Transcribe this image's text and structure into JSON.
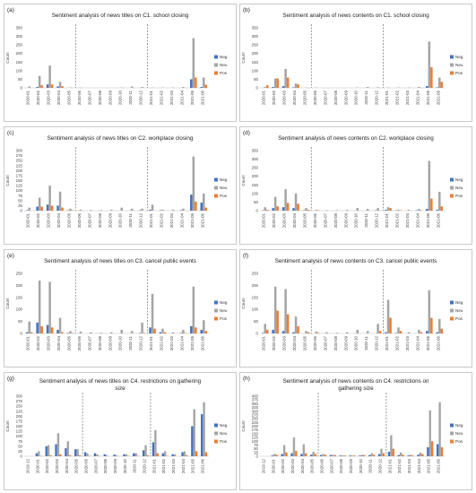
{
  "colors": {
    "Neg": "#4472c4",
    "Neu": "#a5a5a5",
    "Pos": "#ed7d31"
  },
  "legend": [
    "Neg",
    "Neu",
    "Pos"
  ],
  "chart_data": [
    {
      "type": "bar",
      "panel_label": "(a)",
      "title": "Sentiment analysis of news titles on C1. school closing",
      "ylabel": "Count",
      "ylim": [
        0,
        350
      ],
      "yticks": [
        0,
        50,
        100,
        150,
        200,
        250,
        300,
        350
      ],
      "dividers_after": [
        "2020-05",
        "2020-12"
      ],
      "categories": [
        "2020-01",
        "2020-02",
        "2020-03",
        "2020-04",
        "2020-05",
        "2020-06",
        "2020-07",
        "2020-08",
        "2020-09",
        "2020-10",
        "2020-11",
        "2020-12",
        "2021-01",
        "2021-02",
        "2021-03",
        "2021-04",
        "2021-05",
        "2021-06"
      ],
      "series": [
        {
          "name": "Neg",
          "values": [
            0,
            5,
            20,
            8,
            0,
            0,
            0,
            0,
            0,
            0,
            0,
            0,
            0,
            0,
            0,
            0,
            50,
            5
          ]
        },
        {
          "name": "Neu",
          "values": [
            8,
            70,
            130,
            35,
            2,
            2,
            0,
            0,
            0,
            2,
            8,
            5,
            2,
            2,
            2,
            5,
            290,
            60
          ]
        },
        {
          "name": "Pos",
          "values": [
            0,
            15,
            20,
            10,
            0,
            0,
            0,
            0,
            0,
            0,
            0,
            0,
            0,
            0,
            0,
            0,
            60,
            18
          ]
        }
      ]
    },
    {
      "type": "bar",
      "panel_label": "(b)",
      "title": "Sentiment analysis of news contents on C1. school closing",
      "ylabel": "Count",
      "ylim": [
        0,
        350
      ],
      "yticks": [
        0,
        50,
        100,
        150,
        200,
        250,
        300,
        350
      ],
      "dividers_after": [
        "2020-05",
        "2020-12"
      ],
      "categories": [
        "2020-01",
        "2020-02",
        "2020-03",
        "2020-04",
        "2020-05",
        "2020-06",
        "2020-07",
        "2020-08",
        "2020-09",
        "2020-10",
        "2020-11",
        "2020-12",
        "2021-01",
        "2021-02",
        "2021-03",
        "2021-04",
        "2021-05",
        "2021-06"
      ],
      "series": [
        {
          "name": "Neg",
          "values": [
            0,
            5,
            10,
            3,
            0,
            0,
            0,
            0,
            0,
            0,
            0,
            0,
            0,
            0,
            0,
            0,
            10,
            3
          ]
        },
        {
          "name": "Neu",
          "values": [
            5,
            55,
            110,
            25,
            2,
            2,
            0,
            0,
            0,
            2,
            5,
            3,
            2,
            2,
            2,
            5,
            270,
            60
          ]
        },
        {
          "name": "Pos",
          "values": [
            15,
            55,
            60,
            20,
            0,
            0,
            0,
            0,
            0,
            0,
            0,
            0,
            0,
            0,
            0,
            0,
            120,
            35
          ]
        }
      ]
    },
    {
      "type": "bar",
      "panel_label": "(c)",
      "title": "Sentiment analysis of news titles on C2. workplace closing",
      "ylabel": "Count",
      "ylim": [
        0,
        300
      ],
      "yticks": [
        0,
        25,
        50,
        75,
        100,
        125,
        150,
        175,
        200,
        225,
        250,
        275,
        300
      ],
      "dividers_after": [
        "2020-05",
        "2020-12"
      ],
      "categories": [
        "2020-01",
        "2020-02",
        "2020-03",
        "2020-04",
        "2020-05",
        "2020-06",
        "2020-07",
        "2020-08",
        "2020-09",
        "2020-10",
        "2020-11",
        "2020-12",
        "2021-01",
        "2021-02",
        "2021-03",
        "2021-04",
        "2021-05",
        "2021-06"
      ],
      "series": [
        {
          "name": "Neg",
          "values": [
            2,
            20,
            30,
            25,
            2,
            0,
            0,
            0,
            0,
            0,
            0,
            2,
            5,
            2,
            0,
            2,
            80,
            40
          ]
        },
        {
          "name": "Neu",
          "values": [
            15,
            65,
            125,
            95,
            10,
            5,
            3,
            3,
            5,
            15,
            10,
            10,
            30,
            5,
            5,
            10,
            270,
            85
          ]
        },
        {
          "name": "Pos",
          "values": [
            0,
            20,
            25,
            15,
            2,
            0,
            0,
            0,
            0,
            0,
            0,
            0,
            0,
            0,
            0,
            0,
            45,
            15
          ]
        }
      ]
    },
    {
      "type": "bar",
      "panel_label": "(d)",
      "title": "Sentiment analysis of news contents on C2. workplace closing",
      "ylabel": "Count",
      "ylim": [
        0,
        350
      ],
      "yticks": [
        0,
        50,
        100,
        150,
        200,
        250,
        300,
        350
      ],
      "dividers_after": [
        "2020-05",
        "2020-12"
      ],
      "categories": [
        "2020-01",
        "2020-02",
        "2020-03",
        "2020-04",
        "2020-05",
        "2020-06",
        "2020-07",
        "2020-08",
        "2020-09",
        "2020-10",
        "2020-11",
        "2020-12",
        "2021-01",
        "2021-02",
        "2021-03",
        "2021-04",
        "2021-05",
        "2021-06"
      ],
      "series": [
        {
          "name": "Neg",
          "values": [
            2,
            15,
            20,
            15,
            2,
            0,
            0,
            0,
            0,
            0,
            0,
            2,
            5,
            2,
            0,
            2,
            10,
            5
          ]
        },
        {
          "name": "Neu",
          "values": [
            20,
            80,
            125,
            100,
            15,
            5,
            3,
            3,
            5,
            15,
            10,
            15,
            20,
            5,
            5,
            10,
            290,
            110
          ]
        },
        {
          "name": "Pos",
          "values": [
            5,
            25,
            45,
            40,
            5,
            2,
            0,
            0,
            0,
            0,
            0,
            0,
            15,
            2,
            0,
            2,
            70,
            25
          ]
        }
      ]
    },
    {
      "type": "bar",
      "panel_label": "(e)",
      "title": "Sentiment analysis of news titles on C3. cancel public events",
      "ylabel": "Count",
      "ylim": [
        0,
        250
      ],
      "yticks": [
        0,
        50,
        100,
        150,
        200,
        250
      ],
      "dividers_after": [
        "2020-05",
        "2020-12"
      ],
      "categories": [
        "2020-01",
        "2020-02",
        "2020-03",
        "2020-04",
        "2020-05",
        "2020-06",
        "2020-07",
        "2020-08",
        "2020-09",
        "2020-10",
        "2020-11",
        "2020-12",
        "2021-01",
        "2021-02",
        "2021-03",
        "2021-04",
        "2021-05",
        "2021-06"
      ],
      "series": [
        {
          "name": "Neg",
          "values": [
            5,
            45,
            35,
            15,
            2,
            0,
            0,
            0,
            0,
            0,
            0,
            2,
            25,
            5,
            0,
            2,
            30,
            15
          ]
        },
        {
          "name": "Neu",
          "values": [
            50,
            220,
            215,
            65,
            10,
            8,
            5,
            3,
            5,
            15,
            10,
            45,
            165,
            20,
            5,
            15,
            195,
            55
          ]
        },
        {
          "name": "Pos",
          "values": [
            5,
            30,
            25,
            5,
            2,
            0,
            0,
            0,
            0,
            0,
            0,
            2,
            20,
            5,
            0,
            2,
            25,
            10
          ]
        }
      ]
    },
    {
      "type": "bar",
      "panel_label": "(f)",
      "title": "Sentiment analysis of news contents on C3. cancel public events",
      "ylabel": "Count",
      "ylim": [
        0,
        250
      ],
      "yticks": [
        0,
        50,
        100,
        150,
        200,
        250
      ],
      "dividers_after": [
        "2020-05",
        "2020-12"
      ],
      "categories": [
        "2020-01",
        "2020-02",
        "2020-03",
        "2020-04",
        "2020-05",
        "2020-06",
        "2020-07",
        "2020-08",
        "2020-09",
        "2020-10",
        "2020-11",
        "2020-12",
        "2021-01",
        "2021-02",
        "2021-03",
        "2021-04",
        "2021-05",
        "2021-06"
      ],
      "series": [
        {
          "name": "Neg",
          "values": [
            2,
            15,
            10,
            5,
            0,
            0,
            0,
            0,
            0,
            0,
            0,
            0,
            5,
            2,
            0,
            0,
            10,
            5
          ]
        },
        {
          "name": "Neu",
          "values": [
            40,
            195,
            185,
            70,
            10,
            8,
            5,
            3,
            5,
            15,
            10,
            40,
            140,
            25,
            5,
            15,
            180,
            60
          ]
        },
        {
          "name": "Pos",
          "values": [
            15,
            95,
            80,
            30,
            5,
            2,
            0,
            0,
            0,
            0,
            0,
            10,
            65,
            10,
            0,
            5,
            65,
            20
          ]
        }
      ]
    },
    {
      "type": "bar",
      "panel_label": "(g)",
      "title": "Sentiment analysis of news titles on C4. restrictions on gathering size",
      "ylabel": "Count",
      "ylim": [
        0,
        300
      ],
      "yticks": [
        0,
        25,
        50,
        75,
        100,
        125,
        150,
        175,
        200,
        225,
        250,
        275,
        300
      ],
      "dividers_after": [
        "2020-05",
        "2020-12"
      ],
      "categories": [
        "2019-12",
        "2020-01",
        "2020-02",
        "2020-03",
        "2020-04",
        "2020-05",
        "2020-06",
        "2020-07",
        "2020-08",
        "2020-09",
        "2020-10",
        "2020-11",
        "2020-12",
        "2021-01",
        "2021-02",
        "2021-03",
        "2021-04",
        "2021-05",
        "2021-06"
      ],
      "series": [
        {
          "name": "Neg",
          "values": [
            0,
            15,
            50,
            60,
            40,
            35,
            20,
            15,
            10,
            8,
            10,
            15,
            30,
            70,
            15,
            10,
            20,
            150,
            210
          ]
        },
        {
          "name": "Neu",
          "values": [
            0,
            25,
            55,
            115,
            75,
            35,
            15,
            10,
            5,
            5,
            10,
            15,
            55,
            130,
            25,
            10,
            25,
            235,
            270
          ]
        },
        {
          "name": "Pos",
          "values": [
            0,
            2,
            5,
            10,
            5,
            5,
            2,
            2,
            0,
            0,
            2,
            2,
            5,
            15,
            2,
            0,
            5,
            25,
            20
          ]
        }
      ]
    },
    {
      "type": "bar",
      "panel_label": "(h)",
      "title": "Sentiment analysis of news contents on C4. restrictions on gathering size",
      "ylabel": "Count",
      "ylim": [
        0,
        400
      ],
      "yticks": [
        0,
        25,
        50,
        75,
        100,
        125,
        150,
        175,
        200,
        225,
        250,
        275,
        300,
        325,
        350,
        375,
        400
      ],
      "dividers_after": [
        "2020-05",
        "2020-12"
      ],
      "categories": [
        "2019-12",
        "2020-01",
        "2020-02",
        "2020-03",
        "2020-04",
        "2020-05",
        "2020-06",
        "2020-07",
        "2020-08",
        "2020-09",
        "2020-10",
        "2020-11",
        "2020-12",
        "2021-01",
        "2021-02",
        "2021-03",
        "2021-04",
        "2021-05",
        "2021-06"
      ],
      "series": [
        {
          "name": "Neg",
          "values": [
            0,
            5,
            15,
            20,
            15,
            10,
            8,
            8,
            5,
            5,
            5,
            8,
            15,
            30,
            8,
            5,
            10,
            60,
            80
          ]
        },
        {
          "name": "Neu",
          "values": [
            0,
            15,
            75,
            125,
            80,
            30,
            15,
            10,
            5,
            5,
            10,
            20,
            50,
            140,
            25,
            10,
            25,
            305,
            360
          ]
        },
        {
          "name": "Pos",
          "values": [
            0,
            10,
            25,
            35,
            20,
            15,
            10,
            8,
            5,
            5,
            8,
            10,
            20,
            50,
            10,
            5,
            15,
            100,
            60
          ]
        }
      ]
    }
  ]
}
